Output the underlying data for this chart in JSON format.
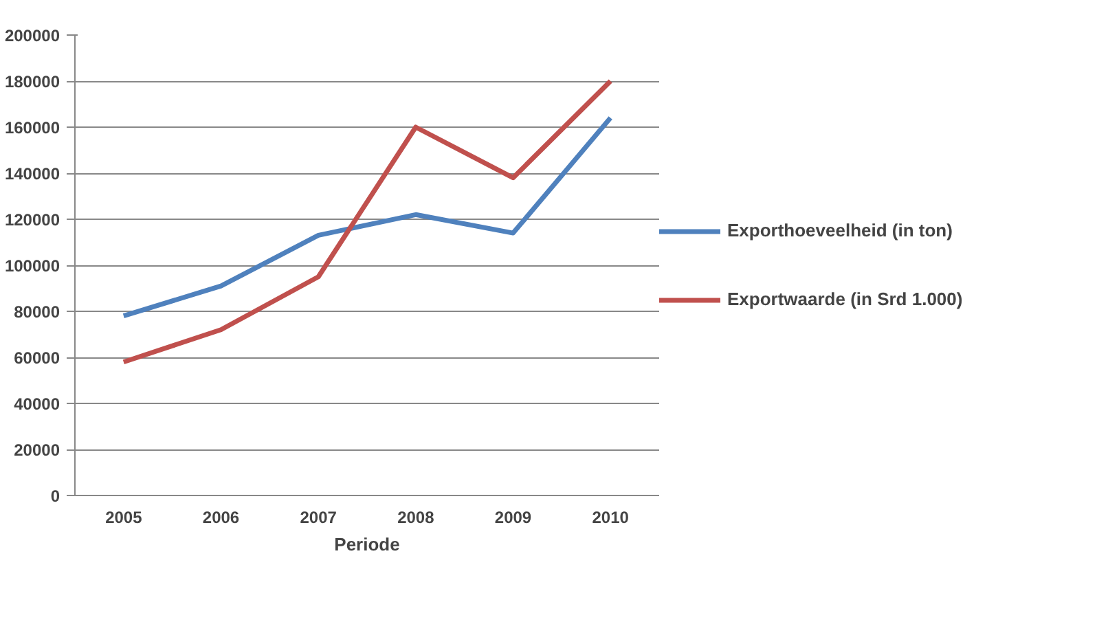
{
  "chart_data": {
    "type": "line",
    "categories": [
      "2005",
      "2006",
      "2007",
      "2008",
      "2009",
      "2010"
    ],
    "xlabel": "Periode",
    "series": [
      {
        "name": "Exporthoeveelheid (in ton)",
        "color": "#4f81bd",
        "values": [
          78000,
          91000,
          113000,
          122000,
          114000,
          164000
        ]
      },
      {
        "name": "Exportwaarde (in Srd 1.000)",
        "color": "#c0504d",
        "values": [
          58000,
          72000,
          95000,
          160000,
          138000,
          180000
        ]
      }
    ],
    "ylim": [
      0,
      200000
    ],
    "yticks": [
      0,
      20000,
      40000,
      60000,
      80000,
      100000,
      120000,
      140000,
      160000,
      180000,
      200000
    ],
    "grid": "y",
    "legend": "right",
    "marker": "none",
    "line_style": "solid"
  }
}
